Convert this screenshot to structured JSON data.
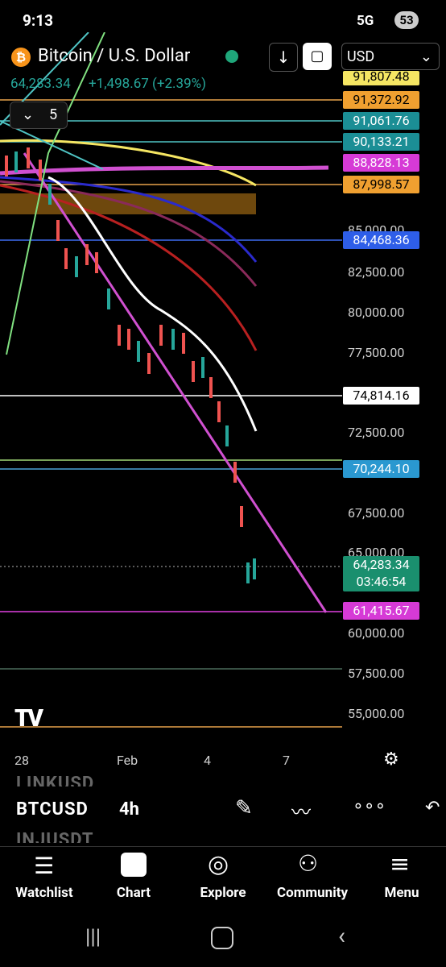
{
  "status_bar": {
    "time": "9:13",
    "network": "5G",
    "battery": "53"
  },
  "header": {
    "symbol": "Bitcoin / U.S. Dollar",
    "currency": "USD",
    "last_price": "64,283.34",
    "change": "+1,498.67 (+2.39%)",
    "indicator_count": "5"
  },
  "price_axis": {
    "labels": [
      "85,000.00",
      "82,500.00",
      "80,000.00",
      "77,500.00",
      "72,500.00",
      "67,500.00",
      "65,000.00",
      "60,000.00",
      "57,500.00",
      "55,000.00"
    ]
  },
  "price_tags": [
    "91,807.48",
    "91,372.92",
    "91,061.76",
    "90,133.21",
    "88,828.13",
    "87,998.57",
    "84,468.36",
    "74,814.16",
    "70,244.10",
    "64,283.34",
    "61,415.67"
  ],
  "countdown": "03:46:54",
  "time_axis": {
    "labels": [
      "28",
      "Feb",
      "4",
      "7"
    ]
  },
  "toolbar": {
    "symbols": [
      "LINKUSD",
      "BTCUSD",
      "INJUSDT"
    ],
    "interval": "4h"
  },
  "bottom_nav": {
    "items": [
      "Watchlist",
      "Chart",
      "Explore",
      "Community",
      "Menu"
    ]
  }
}
